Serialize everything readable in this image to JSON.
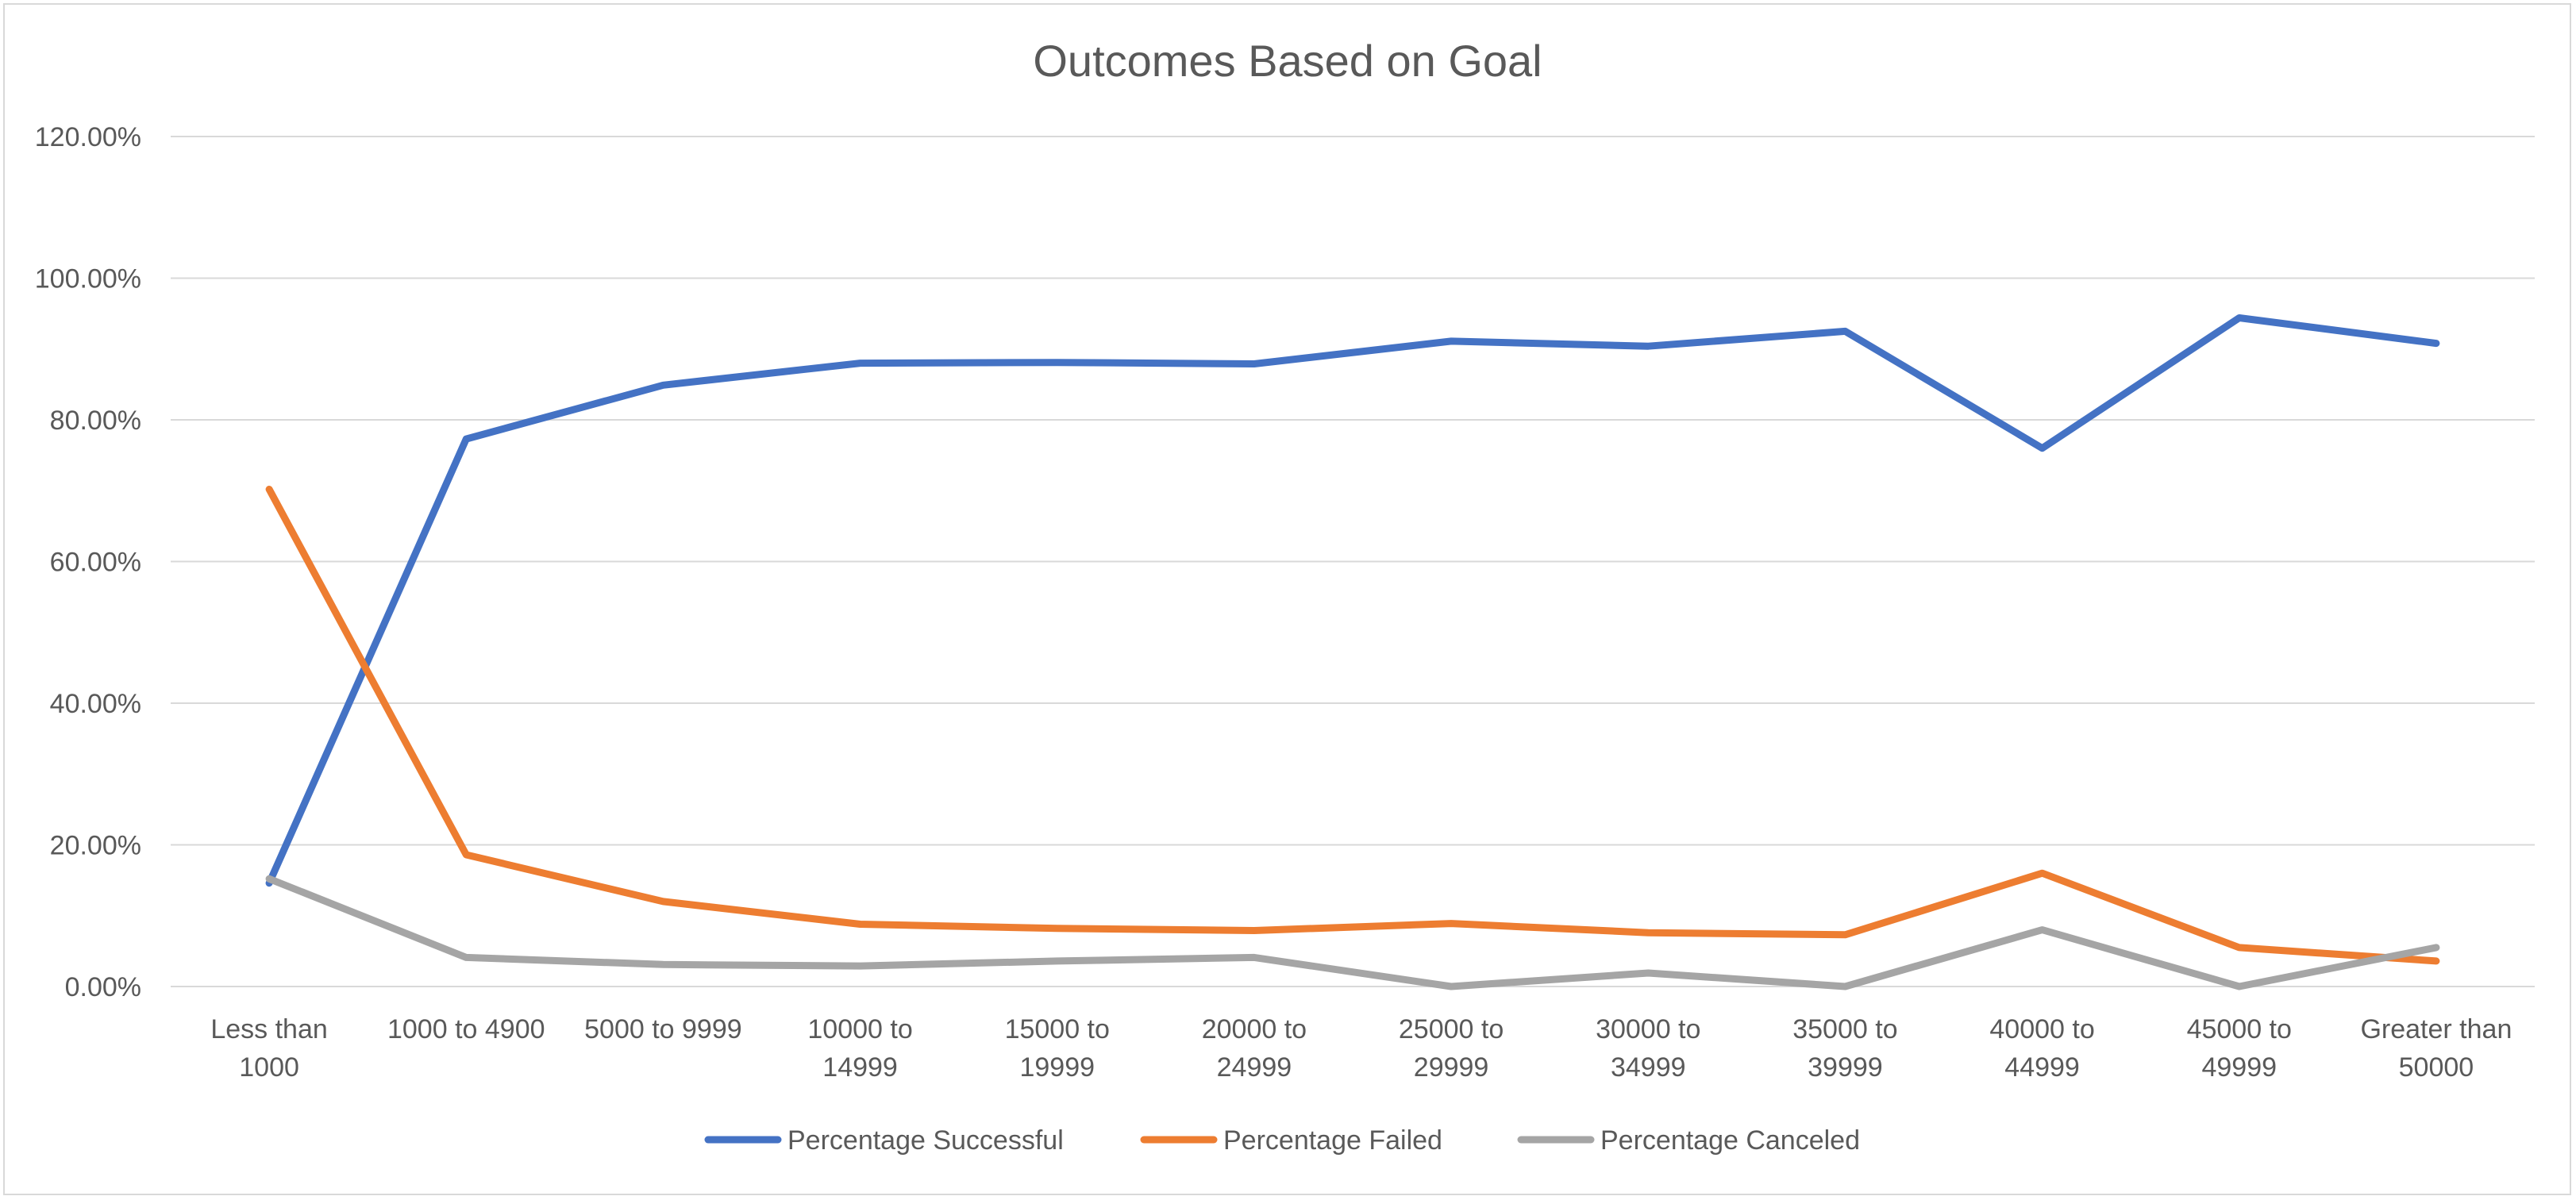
{
  "chart_data": {
    "type": "line",
    "title": "Outcomes Based on Goal",
    "xlabel": "",
    "ylabel": "",
    "categories": [
      [
        "Less than",
        "1000"
      ],
      [
        "1000 to 4900"
      ],
      [
        "5000 to 9999"
      ],
      [
        "10000 to",
        "14999"
      ],
      [
        "15000 to",
        "19999"
      ],
      [
        "20000 to",
        "24999"
      ],
      [
        "25000 to",
        "29999"
      ],
      [
        "30000 to",
        "34999"
      ],
      [
        "35000 to",
        "39999"
      ],
      [
        "40000 to",
        "44999"
      ],
      [
        "45000 to",
        "49999"
      ],
      [
        "Greater than",
        "50000"
      ]
    ],
    "ylim": [
      0,
      120
    ],
    "yticks": [
      0,
      20,
      40,
      60,
      80,
      100,
      120
    ],
    "ytick_labels": [
      "0.00%",
      "20.00%",
      "40.00%",
      "60.00%",
      "80.00%",
      "100.00%",
      "120.00%"
    ],
    "grid": true,
    "legend": "bottom",
    "series": [
      {
        "name": "Percentage Successful",
        "color": "#4472C4",
        "values": [
          14.6,
          77.3,
          84.9,
          88.0,
          88.1,
          87.9,
          91.1,
          90.4,
          92.5,
          76.0,
          94.4,
          90.8
        ]
      },
      {
        "name": "Percentage Failed",
        "color": "#ED7D31",
        "values": [
          70.2,
          18.6,
          12.0,
          8.8,
          8.2,
          7.9,
          8.9,
          7.6,
          7.3,
          16.0,
          5.5,
          3.6
        ]
      },
      {
        "name": "Percentage Canceled",
        "color": "#A5A5A5",
        "values": [
          15.2,
          4.1,
          3.1,
          2.9,
          3.6,
          4.1,
          0.0,
          1.9,
          0.0,
          8.0,
          0.0,
          5.5
        ]
      }
    ]
  }
}
